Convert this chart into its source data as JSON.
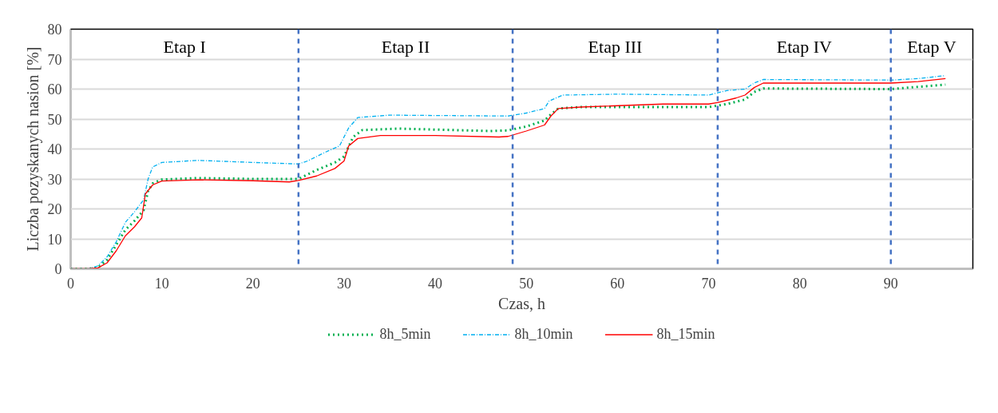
{
  "chart_data": {
    "type": "line",
    "xlabel": "Czas, h",
    "ylabel": "Liczba pozyskanych nasion [%]",
    "xlim": [
      0,
      99
    ],
    "xticks": [
      0,
      10,
      20,
      30,
      40,
      50,
      60,
      70,
      80,
      90
    ],
    "ylim": [
      0,
      80
    ],
    "yticks": [
      0,
      10,
      20,
      30,
      40,
      50,
      60,
      70,
      80
    ],
    "grid": "y",
    "legend": "bottom",
    "marker": "none",
    "series": [
      {
        "name": "8h_5min",
        "color": "#00b050",
        "line_style": "dotted",
        "x": [
          0,
          2,
          3,
          4,
          5,
          6,
          7,
          8,
          8.5,
          9,
          10,
          14,
          20,
          25,
          27,
          29,
          30,
          31,
          32,
          36,
          46,
          48,
          50,
          52,
          52.5,
          53.5,
          56,
          70,
          72,
          74,
          75,
          76,
          90,
          96
        ],
        "values": [
          0,
          0,
          0.5,
          3,
          8,
          13,
          16,
          19.5,
          26,
          28.5,
          29.8,
          30.3,
          30,
          30,
          33,
          35.5,
          37.5,
          44,
          46.3,
          46.8,
          46,
          46.2,
          47.5,
          49.5,
          51,
          53.5,
          54,
          54,
          55,
          56.5,
          59,
          60.2,
          60,
          61.5
        ]
      },
      {
        "name": "8h_10min",
        "color": "#00b0f0",
        "line_style": "dashdot",
        "x": [
          0,
          2,
          3,
          4,
          5,
          6,
          7,
          8,
          8.5,
          9,
          10,
          14,
          20,
          25,
          26,
          28,
          29.5,
          30.5,
          31.5,
          35,
          48,
          50,
          52,
          52.5,
          54,
          60,
          70,
          72,
          74,
          75,
          76,
          90,
          93,
          96
        ],
        "values": [
          0,
          0,
          1,
          4,
          9,
          15.5,
          19,
          23,
          30,
          34,
          35.5,
          36.2,
          35.5,
          35,
          36,
          39,
          41,
          47,
          50.5,
          51.3,
          51,
          52,
          53.5,
          56,
          58,
          58.3,
          58,
          59.5,
          60,
          62,
          63.2,
          63,
          63.5,
          64.5
        ]
      },
      {
        "name": "8h_15min",
        "color": "#ff0000",
        "line_style": "solid",
        "x": [
          0,
          2,
          3,
          4,
          5,
          6,
          7,
          7.8,
          8.2,
          9,
          10,
          14,
          20,
          24,
          25,
          27,
          29,
          30,
          30.5,
          31.5,
          34,
          40,
          47,
          48,
          50,
          52,
          52.7,
          53.5,
          56,
          65,
          70,
          71,
          73,
          74,
          75,
          76,
          80,
          90,
          93,
          96
        ],
        "values": [
          0,
          0,
          0.3,
          2,
          6,
          11,
          14,
          17,
          25,
          28,
          29.3,
          29.7,
          29.4,
          29,
          29.5,
          31,
          33.5,
          36,
          41,
          43.5,
          44.5,
          44.5,
          44,
          44.2,
          46,
          48,
          51,
          53.5,
          54,
          55,
          55,
          55.5,
          57,
          58,
          60.5,
          62,
          62,
          62,
          62.5,
          63.5
        ]
      }
    ],
    "ref_lines": [
      {
        "axis": "x",
        "value": 25,
        "color": "#4472c4",
        "line_style": "dashed"
      },
      {
        "axis": "x",
        "value": 48.5,
        "color": "#4472c4",
        "line_style": "dashed"
      },
      {
        "axis": "x",
        "value": 71,
        "color": "#4472c4",
        "line_style": "dashed"
      },
      {
        "axis": "x",
        "value": 90,
        "color": "#4472c4",
        "line_style": "dashed"
      }
    ],
    "annotations": [
      "Etap I",
      "Etap II",
      "Etap III",
      "Etap IV",
      "Etap V"
    ]
  }
}
